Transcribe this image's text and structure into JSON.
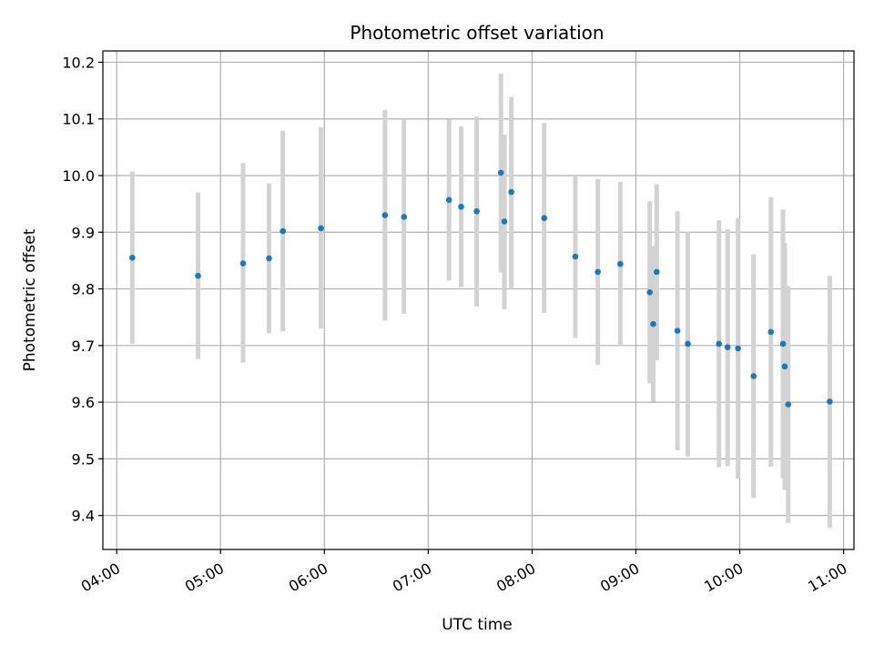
{
  "chart_data": {
    "type": "scatter",
    "title": "Photometric offset variation",
    "xlabel": "UTC time",
    "ylabel": "Photometric offset",
    "x_ticks": [
      "04:00",
      "05:00",
      "06:00",
      "07:00",
      "08:00",
      "09:00",
      "10:00",
      "11:00"
    ],
    "y_ticks": [
      "9.4",
      "9.5",
      "9.6",
      "9.7",
      "9.8",
      "9.9",
      "10.0",
      "10.1",
      "10.2"
    ],
    "xlim": [
      "03:52",
      "11:06"
    ],
    "ylim": [
      9.34,
      10.22
    ],
    "grid": true,
    "errorbar_color": "#d3d3d3",
    "point_color": "#1f77b4",
    "points": [
      {
        "x": "04:09",
        "y": 9.855,
        "low": 9.703,
        "high": 10.007
      },
      {
        "x": "04:47",
        "y": 9.823,
        "low": 9.676,
        "high": 9.97
      },
      {
        "x": "05:13",
        "y": 9.845,
        "low": 9.67,
        "high": 10.022
      },
      {
        "x": "05:28",
        "y": 9.854,
        "low": 9.722,
        "high": 9.986
      },
      {
        "x": "05:36",
        "y": 9.902,
        "low": 9.725,
        "high": 10.079
      },
      {
        "x": "05:58",
        "y": 9.907,
        "low": 9.73,
        "high": 10.085
      },
      {
        "x": "06:35",
        "y": 9.93,
        "low": 9.744,
        "high": 10.116
      },
      {
        "x": "06:46",
        "y": 9.927,
        "low": 9.756,
        "high": 10.1
      },
      {
        "x": "07:12",
        "y": 9.957,
        "low": 9.815,
        "high": 10.099
      },
      {
        "x": "07:19",
        "y": 9.945,
        "low": 9.803,
        "high": 10.087
      },
      {
        "x": "07:28",
        "y": 9.937,
        "low": 9.769,
        "high": 10.104
      },
      {
        "x": "07:42",
        "y": 10.005,
        "low": 9.829,
        "high": 10.18
      },
      {
        "x": "07:44",
        "y": 9.919,
        "low": 9.764,
        "high": 10.072
      },
      {
        "x": "07:48",
        "y": 9.971,
        "low": 9.8,
        "high": 10.139
      },
      {
        "x": "08:07",
        "y": 9.925,
        "low": 9.758,
        "high": 10.093
      },
      {
        "x": "08:25",
        "y": 9.857,
        "low": 9.713,
        "high": 10.0
      },
      {
        "x": "08:38",
        "y": 9.83,
        "low": 9.666,
        "high": 9.994
      },
      {
        "x": "08:51",
        "y": 9.844,
        "low": 9.7,
        "high": 9.989
      },
      {
        "x": "09:08",
        "y": 9.794,
        "low": 9.633,
        "high": 9.955
      },
      {
        "x": "09:10",
        "y": 9.738,
        "low": 9.601,
        "high": 9.876
      },
      {
        "x": "09:12",
        "y": 9.83,
        "low": 9.674,
        "high": 9.985
      },
      {
        "x": "09:24",
        "y": 9.726,
        "low": 9.515,
        "high": 9.937
      },
      {
        "x": "09:30",
        "y": 9.703,
        "low": 9.504,
        "high": 9.901
      },
      {
        "x": "09:48",
        "y": 9.703,
        "low": 9.485,
        "high": 9.921
      },
      {
        "x": "09:53",
        "y": 9.697,
        "low": 9.487,
        "high": 9.905
      },
      {
        "x": "09:59",
        "y": 9.695,
        "low": 9.465,
        "high": 9.925
      },
      {
        "x": "10:08",
        "y": 9.646,
        "low": 9.431,
        "high": 9.861
      },
      {
        "x": "10:18",
        "y": 9.724,
        "low": 9.486,
        "high": 9.962
      },
      {
        "x": "10:25",
        "y": 9.703,
        "low": 9.466,
        "high": 9.94
      },
      {
        "x": "10:26",
        "y": 9.663,
        "low": 9.445,
        "high": 9.881
      },
      {
        "x": "10:28",
        "y": 9.596,
        "low": 9.387,
        "high": 9.805
      },
      {
        "x": "10:52",
        "y": 9.601,
        "low": 9.378,
        "high": 9.823
      }
    ]
  }
}
